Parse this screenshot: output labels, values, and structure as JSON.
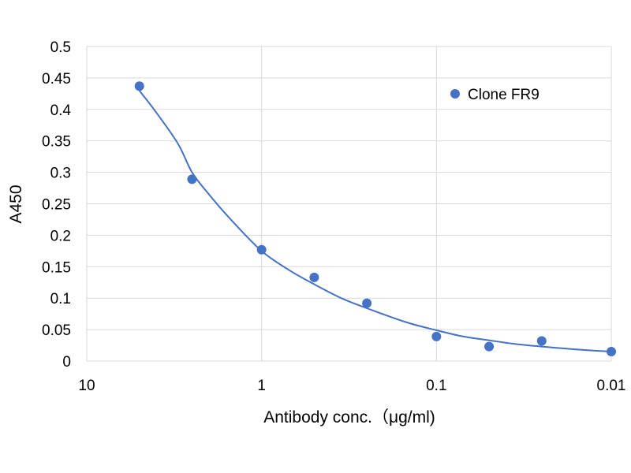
{
  "chart_data": {
    "type": "scatter",
    "title": "",
    "xlabel": "Antibody conc.（μg/ml)",
    "ylabel": "A450",
    "x_scale": "log",
    "x_reversed": true,
    "xlim": [
      10,
      0.01
    ],
    "ylim": [
      0,
      0.5
    ],
    "x_ticks": [
      10,
      1,
      0.1,
      0.01
    ],
    "x_tick_labels": [
      "10",
      "1",
      "0.1",
      "0.01"
    ],
    "y_ticks": [
      0,
      0.05,
      0.1,
      0.15,
      0.2,
      0.25,
      0.3,
      0.35,
      0.4,
      0.45,
      0.5
    ],
    "y_tick_labels": [
      "0",
      "0.05",
      "0.1",
      "0.15",
      "0.2",
      "0.25",
      "0.3",
      "0.35",
      "0.4",
      "0.45",
      "0.5"
    ],
    "grid": true,
    "legend_position": "top-right",
    "series": [
      {
        "name": "Clone FR9",
        "color": "#4472C4",
        "marker": "circle",
        "x": [
          5,
          2.5,
          1,
          0.5,
          0.25,
          0.1,
          0.05,
          0.025,
          0.01
        ],
        "y": [
          0.437,
          0.289,
          0.177,
          0.133,
          0.092,
          0.039,
          0.023,
          0.032,
          0.015
        ]
      }
    ],
    "trendline": {
      "color": "#4472C4",
      "x": [
        5,
        4,
        3,
        2.5,
        2,
        1.5,
        1,
        0.7,
        0.5,
        0.35,
        0.25,
        0.15,
        0.1,
        0.07,
        0.05,
        0.035,
        0.025,
        0.015,
        0.01
      ],
      "y": [
        0.43,
        0.395,
        0.345,
        0.3,
        0.265,
        0.225,
        0.175,
        0.145,
        0.122,
        0.1,
        0.084,
        0.062,
        0.049,
        0.039,
        0.033,
        0.027,
        0.023,
        0.018,
        0.015
      ]
    }
  }
}
